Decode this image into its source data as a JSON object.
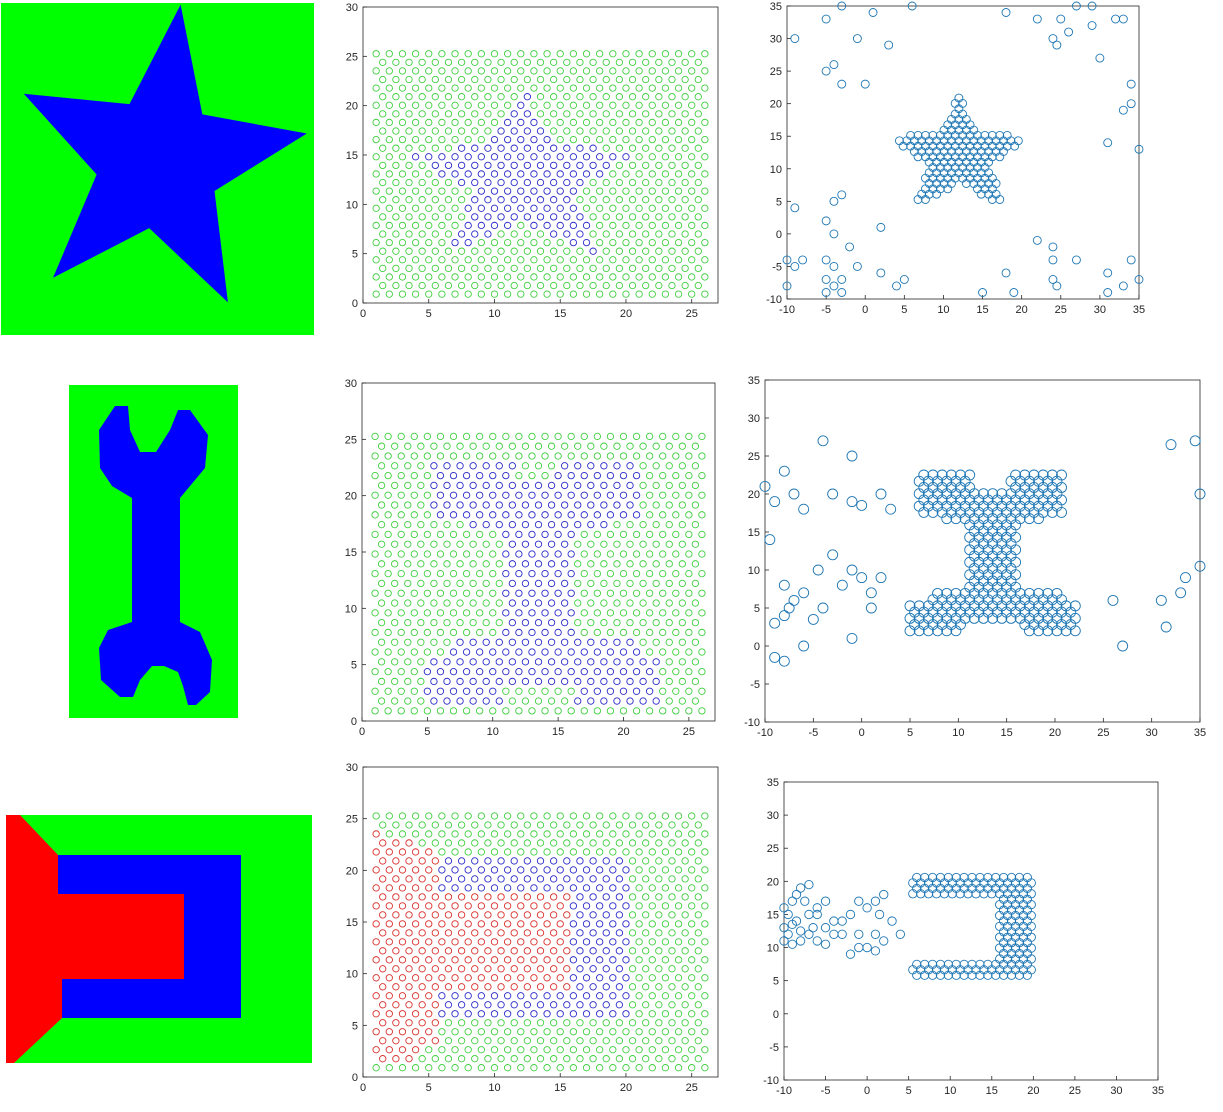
{
  "colors": {
    "green": "#00ff00",
    "blue": "#0000ff",
    "red": "#ff0000",
    "scatter_green": "#3fcf3f",
    "scatter_blue": "#2b2bc9",
    "scatter_red": "#d9302c",
    "outline": "#1f77b4",
    "axis": "#262626"
  },
  "chart_data": [
    {
      "type": "image",
      "shape": "star",
      "description_colors": [
        "green",
        "blue"
      ]
    },
    {
      "type": "scatter",
      "shape": "star",
      "marker": "circle",
      "xlim": [
        0,
        27
      ],
      "ylim": [
        0,
        30
      ],
      "xticks": [
        0,
        5,
        10,
        15,
        20,
        25
      ],
      "yticks": [
        0,
        5,
        10,
        15,
        20,
        25,
        30
      ],
      "grid": false,
      "series": [
        {
          "color": "green",
          "grid_x": [
            1,
            26
          ],
          "grid_y": [
            0.7,
            25.3
          ],
          "role": "background lattice"
        },
        {
          "color": "blue",
          "role": "star lattice",
          "center": [
            12,
            13
          ]
        }
      ]
    },
    {
      "type": "scatter",
      "shape": "star",
      "marker": "circle",
      "xlim": [
        -10,
        35
      ],
      "ylim": [
        -10,
        35
      ],
      "xticks": [
        -10,
        -5,
        0,
        5,
        10,
        15,
        20,
        25,
        30,
        35
      ],
      "yticks": [
        -10,
        -5,
        0,
        5,
        10,
        15,
        20,
        25,
        30,
        35
      ],
      "grid": false,
      "series": [
        {
          "color": "outline",
          "role": "assembled star",
          "center": [
            12,
            12
          ]
        },
        {
          "color": "outline",
          "role": "scattered robots",
          "points": [
            [
              -9,
              30
            ],
            [
              -5,
              33
            ],
            [
              -3,
              35
            ],
            [
              1,
              34
            ],
            [
              6,
              35
            ],
            [
              18,
              34
            ],
            [
              22,
              33
            ],
            [
              25,
              33
            ],
            [
              27,
              35
            ],
            [
              29,
              35
            ],
            [
              32,
              33
            ],
            [
              33,
              33
            ],
            [
              -5,
              25
            ],
            [
              -4,
              26
            ],
            [
              -3,
              23
            ],
            [
              -1,
              30
            ],
            [
              3,
              29
            ],
            [
              0,
              23
            ],
            [
              24,
              30
            ],
            [
              24.5,
              29
            ],
            [
              26,
              31
            ],
            [
              29,
              32
            ],
            [
              30,
              27
            ],
            [
              33,
              19
            ],
            [
              34,
              20
            ],
            [
              34,
              23
            ],
            [
              31,
              14
            ],
            [
              35,
              13
            ],
            [
              -9,
              4
            ],
            [
              -3,
              6
            ],
            [
              -4,
              5
            ],
            [
              -4,
              0
            ],
            [
              -5,
              2
            ],
            [
              -2,
              -2
            ],
            [
              2,
              1
            ],
            [
              -10,
              -4
            ],
            [
              -9,
              -5
            ],
            [
              -8,
              -4
            ],
            [
              -5,
              -4
            ],
            [
              -4,
              -5
            ],
            [
              -5,
              -7
            ],
            [
              -3,
              -7
            ],
            [
              -4,
              -8
            ],
            [
              -5,
              -9
            ],
            [
              -3,
              -9
            ],
            [
              -1,
              -5
            ],
            [
              2,
              -6
            ],
            [
              5,
              -7
            ],
            [
              4,
              -8
            ],
            [
              15,
              -9
            ],
            [
              18,
              -6
            ],
            [
              19,
              -9
            ],
            [
              22,
              -1
            ],
            [
              24,
              -2
            ],
            [
              24,
              -4
            ],
            [
              24,
              -7
            ],
            [
              24.5,
              -8
            ],
            [
              27,
              -4
            ],
            [
              31,
              -6
            ],
            [
              31,
              -9
            ],
            [
              33,
              -8
            ],
            [
              34,
              -4
            ],
            [
              35,
              -7
            ],
            [
              -10,
              -8
            ]
          ]
        }
      ]
    },
    {
      "type": "image",
      "shape": "wrench",
      "description_colors": [
        "green",
        "blue"
      ]
    },
    {
      "type": "scatter",
      "shape": "wrench",
      "marker": "circle",
      "xlim": [
        0,
        27
      ],
      "ylim": [
        0,
        30
      ],
      "xticks": [
        0,
        5,
        10,
        15,
        20,
        25
      ],
      "yticks": [
        0,
        5,
        10,
        15,
        20,
        25,
        30
      ],
      "grid": false,
      "series": [
        {
          "color": "green",
          "role": "background lattice"
        },
        {
          "color": "blue",
          "role": "wrench lattice"
        }
      ]
    },
    {
      "type": "scatter",
      "shape": "wrench",
      "marker": "circle",
      "xlim": [
        -10,
        35
      ],
      "ylim": [
        -10,
        35
      ],
      "xticks": [
        -10,
        -5,
        0,
        5,
        10,
        15,
        20,
        25,
        30,
        35
      ],
      "yticks": [
        -10,
        -5,
        0,
        5,
        10,
        15,
        20,
        25,
        30,
        35
      ],
      "grid": false,
      "series": [
        {
          "color": "outline",
          "role": "assembled wrench"
        },
        {
          "color": "outline",
          "role": "scattered robots",
          "points": [
            [
              -10,
              21
            ],
            [
              -9,
              19
            ],
            [
              -9.5,
              14
            ],
            [
              -8,
              23
            ],
            [
              -7,
              20
            ],
            [
              -6,
              18
            ],
            [
              -4,
              27
            ],
            [
              -3,
              20
            ],
            [
              -1,
              19
            ],
            [
              -1,
              25
            ],
            [
              0,
              18.5
            ],
            [
              2,
              20
            ],
            [
              3,
              18
            ],
            [
              -4.5,
              10
            ],
            [
              -3,
              12
            ],
            [
              -2,
              8
            ],
            [
              -1,
              10
            ],
            [
              0,
              9
            ],
            [
              1,
              7
            ],
            [
              2,
              9
            ],
            [
              -8,
              8
            ],
            [
              -7.5,
              5
            ],
            [
              -7,
              6
            ],
            [
              -5,
              3.5
            ],
            [
              -9,
              3
            ],
            [
              -8,
              4
            ],
            [
              -6,
              7
            ],
            [
              -4,
              5
            ],
            [
              1,
              5
            ],
            [
              -9,
              -1.5
            ],
            [
              -8,
              -2
            ],
            [
              -6,
              0
            ],
            [
              -1,
              1
            ],
            [
              26,
              6
            ],
            [
              27,
              0
            ],
            [
              31,
              6
            ],
            [
              31.5,
              2.5
            ],
            [
              32,
              26.5
            ],
            [
              33,
              7
            ],
            [
              33.5,
              9
            ],
            [
              34.5,
              27
            ],
            [
              35,
              20
            ],
            [
              35,
              10.5
            ]
          ]
        }
      ]
    },
    {
      "type": "image",
      "shape": "U-shape",
      "description_colors": [
        "green",
        "blue",
        "red"
      ]
    },
    {
      "type": "scatter",
      "shape": "U-shape",
      "marker": "circle",
      "xlim": [
        0,
        27
      ],
      "ylim": [
        0,
        30
      ],
      "xticks": [
        0,
        5,
        10,
        15,
        20,
        25
      ],
      "yticks": [
        0,
        5,
        10,
        15,
        20,
        25,
        30
      ],
      "grid": false,
      "series": [
        {
          "color": "green",
          "role": "background lattice"
        },
        {
          "color": "blue",
          "role": "U lattice"
        },
        {
          "color": "red",
          "role": "red lattice"
        }
      ]
    },
    {
      "type": "scatter",
      "shape": "U-shape",
      "marker": "circle",
      "xlim": [
        -10,
        35
      ],
      "ylim": [
        -10,
        35
      ],
      "xticks": [
        -10,
        -5,
        0,
        5,
        10,
        15,
        20,
        25,
        30,
        35
      ],
      "yticks": [
        -10,
        -5,
        0,
        5,
        10,
        15,
        20,
        25,
        30,
        35
      ],
      "grid": false,
      "series": [
        {
          "color": "outline",
          "role": "assembled U"
        },
        {
          "color": "outline",
          "role": "scattered robots",
          "points": [
            [
              -10,
              16
            ],
            [
              -9.5,
              15
            ],
            [
              -9,
              17
            ],
            [
              -8.5,
              18
            ],
            [
              -8,
              19
            ],
            [
              -7,
              19.5
            ],
            [
              -7.5,
              17
            ],
            [
              -6,
              15
            ],
            [
              -5,
              17
            ],
            [
              -6.5,
              13
            ],
            [
              -7,
              12
            ],
            [
              -8,
              11
            ],
            [
              -9,
              10.5
            ],
            [
              -9.5,
              12
            ],
            [
              -10,
              13
            ],
            [
              -10,
              11
            ],
            [
              -8.5,
              14
            ],
            [
              -7,
              15
            ],
            [
              -6,
              11
            ],
            [
              -5,
              10.5
            ],
            [
              -4,
              12
            ],
            [
              -3,
              14
            ],
            [
              -2,
              15
            ],
            [
              -1,
              17
            ],
            [
              0,
              16
            ],
            [
              1,
              17
            ],
            [
              2,
              18
            ],
            [
              1.5,
              15
            ],
            [
              3,
              14
            ],
            [
              -3,
              12
            ],
            [
              -1,
              12
            ],
            [
              0,
              10
            ],
            [
              1,
              12
            ],
            [
              2,
              11
            ],
            [
              -2,
              9
            ],
            [
              -1,
              10
            ],
            [
              1,
              9.5
            ],
            [
              4,
              12
            ],
            [
              -5,
              13
            ],
            [
              -6,
              16
            ],
            [
              -4,
              14
            ],
            [
              -8,
              12.5
            ],
            [
              -9,
              13.5
            ]
          ]
        }
      ]
    }
  ]
}
